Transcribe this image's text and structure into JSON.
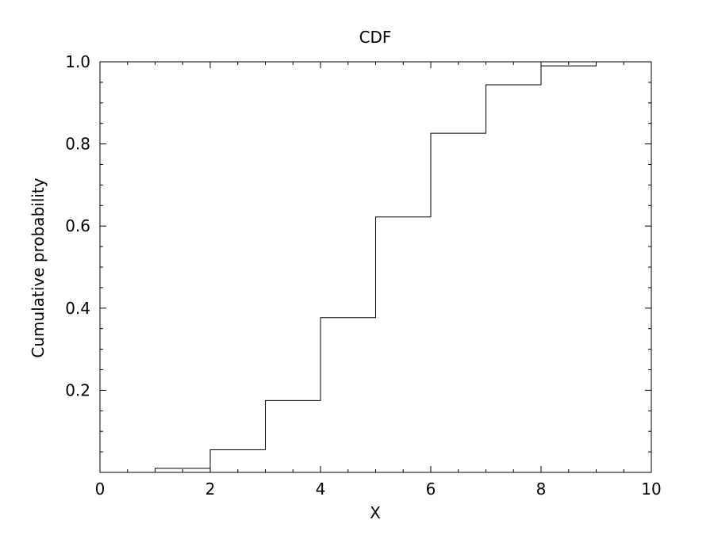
{
  "chart_data": {
    "type": "line",
    "step": true,
    "title": "CDF",
    "xlabel": "X",
    "ylabel": "Cumulative probability",
    "xlim": [
      0,
      10
    ],
    "ylim": [
      0,
      1.0
    ],
    "xticks": [
      "0",
      "2",
      "4",
      "6",
      "8",
      "10"
    ],
    "yticks": [
      "0.2",
      "0.4",
      "0.6",
      "0.8",
      "1.0"
    ],
    "grid": false,
    "series": [
      {
        "x": [
          0,
          1,
          2,
          3,
          4,
          5,
          6,
          7,
          8,
          9,
          10
        ],
        "y": [
          0.0,
          0.01,
          0.055,
          0.175,
          0.377,
          0.622,
          0.826,
          0.944,
          0.99,
          1.0,
          1.0
        ],
        "color": "#000000"
      }
    ]
  }
}
